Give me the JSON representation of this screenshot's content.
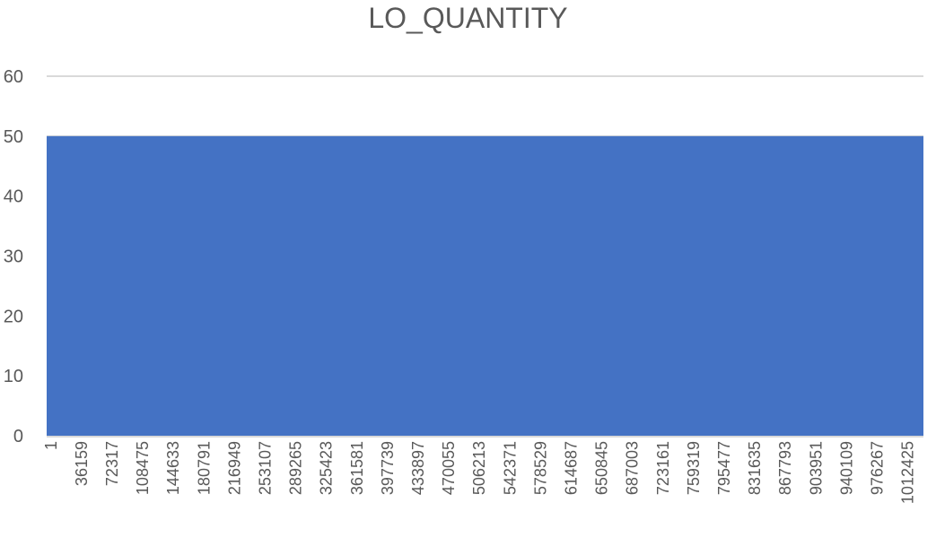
{
  "chart_data": {
    "type": "area",
    "title": "LO_QUANTITY",
    "xlabel": "",
    "ylabel": "",
    "ylim": [
      0,
      60
    ],
    "yticks": [
      0,
      10,
      20,
      30,
      40,
      50,
      60
    ],
    "x_tick_labels": [
      "1",
      "36159",
      "72317",
      "108475",
      "144633",
      "180791",
      "216949",
      "253107",
      "289265",
      "325423",
      "361581",
      "397739",
      "433897",
      "470055",
      "506213",
      "542371",
      "578529",
      "614687",
      "650845",
      "687003",
      "723161",
      "759319",
      "795477",
      "831635",
      "867793",
      "903951",
      "940109",
      "976267",
      "1012425"
    ],
    "x": [
      1,
      1040000
    ],
    "series": [
      {
        "values": [
          50,
          50
        ],
        "color": "#4472C4"
      }
    ],
    "grid": true,
    "legend": "none",
    "colors": {
      "area": "#4472C4",
      "grid": "#d9d9d9",
      "text": "#595959"
    }
  }
}
